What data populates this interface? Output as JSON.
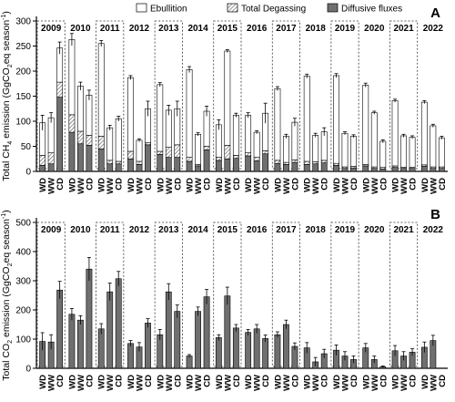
{
  "chart_data": [
    {
      "panel_label": "A",
      "type": "bar",
      "stacked": true,
      "ylabel_parts": [
        "Total CH",
        "4",
        " emission (GgCO",
        "2",
        "eq season",
        "-1",
        ")"
      ],
      "ylim": [
        0,
        300
      ],
      "yticks": [
        "0",
        "50",
        "100",
        "150",
        "200",
        "250",
        "300"
      ],
      "years": [
        "2009",
        "2010",
        "2011",
        "2012",
        "2013",
        "2014",
        "2015",
        "2016",
        "2017",
        "2018",
        "2019",
        "2020",
        "2021",
        "2022"
      ],
      "categories": [
        "WD",
        "WW",
        "CD"
      ],
      "legend": [
        {
          "name": "Ebullition",
          "fill": "#ffffff"
        },
        {
          "name": "Total Degassing",
          "fill": "hatch"
        },
        {
          "name": "Diffusive fluxes",
          "fill": "#6f6f6f"
        }
      ],
      "series_order": [
        "Diffusive fluxes",
        "Total Degassing",
        "Ebullition"
      ],
      "stacks": [
        [
          [
            12,
            20,
            65,
            15
          ],
          [
            15,
            22,
            70,
            10
          ],
          [
            148,
            30,
            68,
            12
          ]
        ],
        [
          [
            78,
            35,
            150,
            12
          ],
          [
            55,
            25,
            90,
            8
          ],
          [
            52,
            20,
            80,
            10
          ]
        ],
        [
          [
            45,
            25,
            185,
            6
          ],
          [
            15,
            7,
            65,
            5
          ],
          [
            15,
            5,
            85,
            5
          ]
        ],
        [
          [
            25,
            15,
            147,
            4
          ],
          [
            14,
            6,
            42,
            3
          ],
          [
            53,
            4,
            68,
            15
          ]
        ],
        [
          [
            34,
            6,
            133,
            4
          ],
          [
            28,
            20,
            74,
            10
          ],
          [
            28,
            25,
            72,
            15
          ]
        ],
        [
          [
            20,
            8,
            175,
            6
          ],
          [
            11,
            3,
            60,
            3
          ],
          [
            43,
            7,
            70,
            10
          ]
        ],
        [
          [
            22,
            6,
            65,
            10
          ],
          [
            25,
            27,
            188,
            3
          ],
          [
            26,
            6,
            80,
            4
          ]
        ],
        [
          [
            31,
            6,
            75,
            5
          ],
          [
            21,
            7,
            50,
            3
          ],
          [
            35,
            6,
            75,
            20
          ]
        ],
        [
          [
            16,
            6,
            143,
            4
          ],
          [
            14,
            4,
            52,
            4
          ],
          [
            18,
            5,
            75,
            8
          ]
        ],
        [
          [
            14,
            6,
            170,
            4
          ],
          [
            15,
            4,
            53,
            4
          ],
          [
            17,
            5,
            57,
            8
          ]
        ],
        [
          [
            12,
            4,
            175,
            4
          ],
          [
            6,
            3,
            67,
            3
          ],
          [
            7,
            3,
            60,
            3
          ]
        ],
        [
          [
            11,
            3,
            158,
            4
          ],
          [
            6,
            3,
            108,
            3
          ],
          [
            5,
            3,
            52,
            3
          ]
        ],
        [
          [
            8,
            3,
            130,
            3
          ],
          [
            6,
            2,
            63,
            3
          ],
          [
            6,
            2,
            60,
            3
          ]
        ],
        [
          [
            10,
            3,
            125,
            3
          ],
          [
            6,
            3,
            82,
            3
          ],
          [
            6,
            3,
            58,
            3
          ]
        ]
      ]
    },
    {
      "panel_label": "B",
      "type": "bar",
      "ylabel_parts": [
        "Total CO",
        "2",
        " emission (GgCO",
        "2",
        "eq season",
        "-1",
        ")"
      ],
      "ylim": [
        0,
        500
      ],
      "yticks": [
        "0",
        "100",
        "200",
        "300",
        "400",
        "500"
      ],
      "years": [
        "2009",
        "2010",
        "2011",
        "2012",
        "2013",
        "2014",
        "2015",
        "2016",
        "2017",
        "2018",
        "2019",
        "2020",
        "2021",
        "2022"
      ],
      "categories": [
        "WD",
        "WW",
        "CD"
      ],
      "series": [
        {
          "name": "Total CO2 emission",
          "fill": "#6f6f6f"
        }
      ],
      "values": [
        [
          [
            92,
            30
          ],
          [
            90,
            25
          ],
          [
            268,
            30
          ]
        ],
        [
          [
            185,
            20
          ],
          [
            165,
            15
          ],
          [
            340,
            40
          ]
        ],
        [
          [
            135,
            18
          ],
          [
            262,
            30
          ],
          [
            307,
            25
          ]
        ],
        [
          [
            85,
            10
          ],
          [
            73,
            15
          ],
          [
            155,
            15
          ]
        ],
        [
          [
            115,
            18
          ],
          [
            262,
            28
          ],
          [
            195,
            22
          ]
        ],
        [
          [
            42,
            5
          ],
          [
            195,
            15
          ],
          [
            245,
            25
          ]
        ],
        [
          [
            105,
            10
          ],
          [
            248,
            30
          ],
          [
            138,
            12
          ]
        ],
        [
          [
            123,
            10
          ],
          [
            135,
            15
          ],
          [
            102,
            12
          ]
        ],
        [
          [
            115,
            10
          ],
          [
            150,
            15
          ],
          [
            75,
            12
          ]
        ],
        [
          [
            70,
            18
          ],
          [
            22,
            15
          ],
          [
            50,
            15
          ]
        ],
        [
          [
            62,
            18
          ],
          [
            42,
            15
          ],
          [
            30,
            12
          ]
        ],
        [
          [
            70,
            15
          ],
          [
            30,
            12
          ],
          [
            5,
            3
          ]
        ],
        [
          [
            60,
            18
          ],
          [
            42,
            15
          ],
          [
            55,
            12
          ]
        ],
        [
          [
            72,
            18
          ],
          [
            95,
            18
          ],
          [
            0,
            0
          ]
        ]
      ]
    }
  ]
}
